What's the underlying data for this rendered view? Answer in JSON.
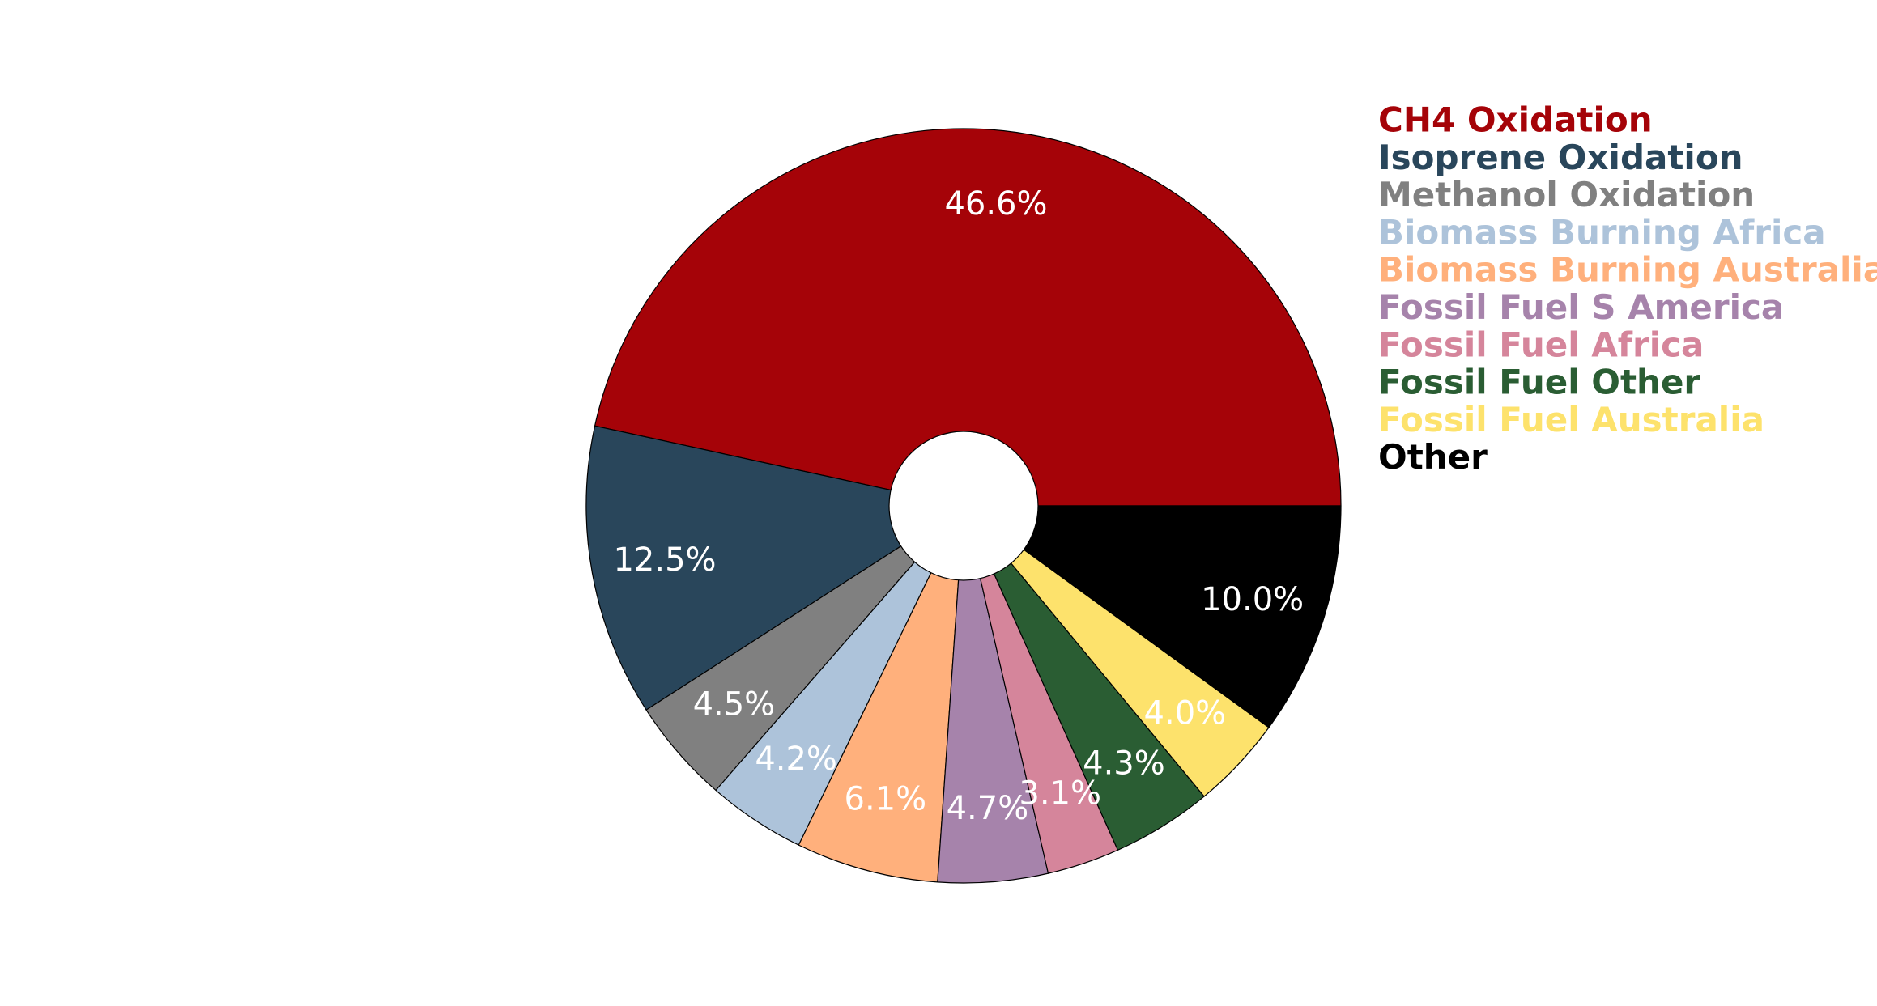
{
  "chart_data": {
    "type": "pie",
    "donut": true,
    "start_angle_deg": 0,
    "direction": "counterclockwise",
    "slices": [
      {
        "name": "CH4 Oxidation",
        "value": 46.6,
        "label": "46.6%",
        "color": "#a50308"
      },
      {
        "name": "Isoprene Oxidation",
        "value": 12.5,
        "label": "12.5%",
        "color": "#29465b"
      },
      {
        "name": "Methanol Oxidation",
        "value": 4.5,
        "label": "4.5%",
        "color": "#808080"
      },
      {
        "name": "Biomass Burning Africa",
        "value": 4.2,
        "label": "4.2%",
        "color": "#adc3da"
      },
      {
        "name": "Biomass Burning Australia",
        "value": 6.1,
        "label": "6.1%",
        "color": "#ffb07c"
      },
      {
        "name": "Fossil Fuel S America",
        "value": 4.7,
        "label": "4.7%",
        "color": "#a683ab"
      },
      {
        "name": "Fossil Fuel Africa",
        "value": 3.1,
        "label": "3.1%",
        "color": "#d5859b"
      },
      {
        "name": "Fossil Fuel Other",
        "value": 4.3,
        "label": "4.3%",
        "color": "#2a5d33"
      },
      {
        "name": "Fossil Fuel Australia",
        "value": 4.0,
        "label": "4.0%",
        "color": "#fde26c"
      },
      {
        "name": "Other",
        "value": 10.0,
        "label": "10.0%",
        "color": "#000000"
      }
    ],
    "legend": {
      "placement": "right"
    }
  }
}
